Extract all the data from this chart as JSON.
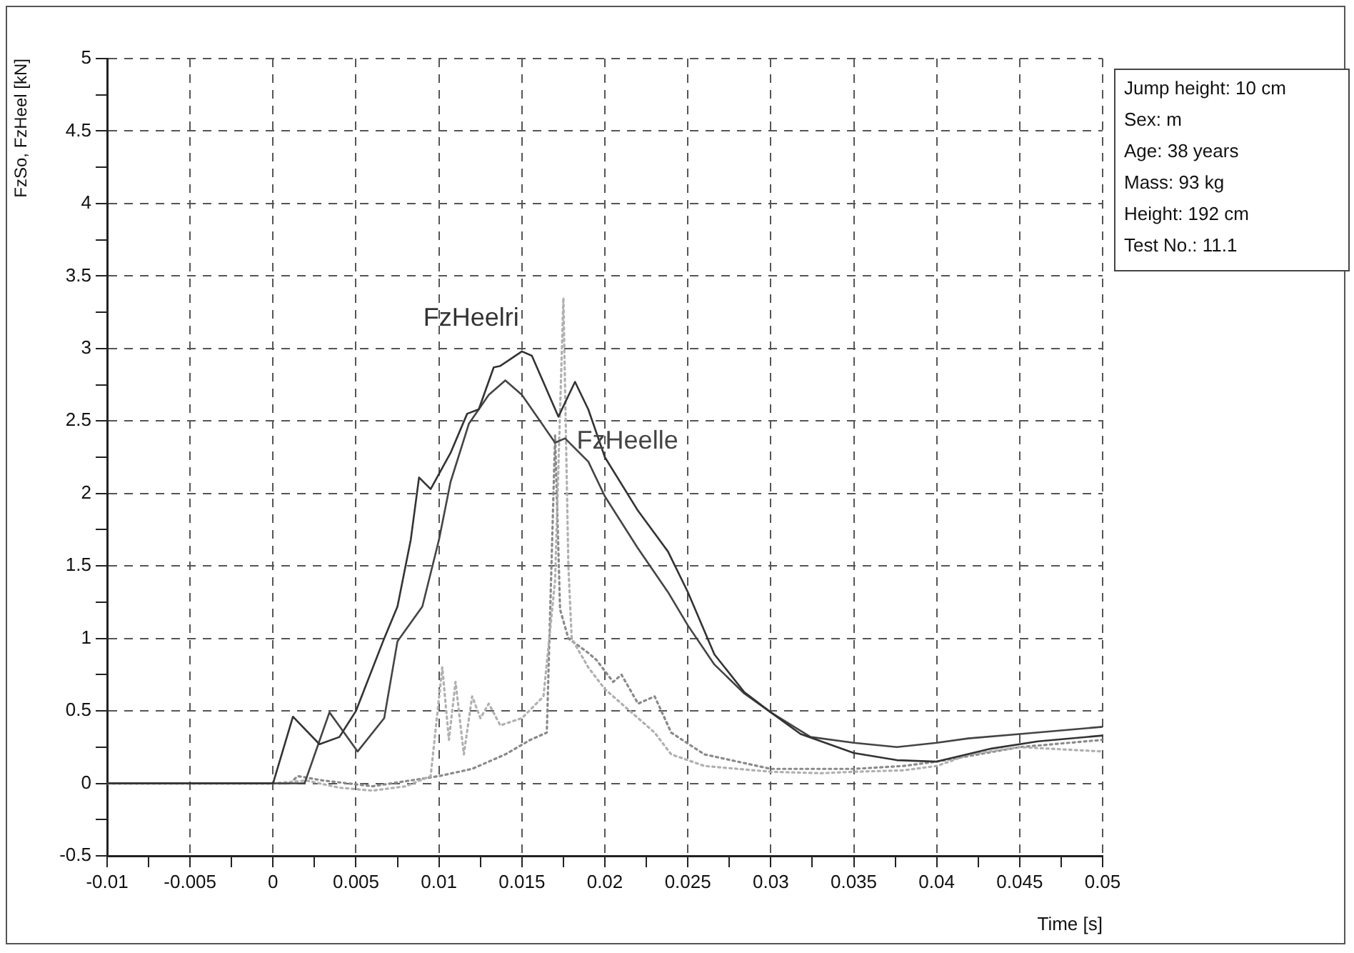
{
  "chart_data": {
    "type": "line",
    "xlabel": "Time [s]",
    "ylabel": "FzSo, FzHeel [kN]",
    "annotations": [
      "Jump height: 10 cm",
      "Sex: m",
      "Age: 38 years",
      "Mass: 93 kg",
      "Height: 192 cm",
      "Test No.: 11.1"
    ],
    "xlim": [
      -0.01,
      0.05
    ],
    "xticks": [
      -0.01,
      {
        "value": -0.0075,
        "label": null
      },
      -0.005,
      {
        "value": -0.0025,
        "label": null
      },
      0,
      {
        "value": 0.0025,
        "label": null
      },
      0.005,
      {
        "value": 0.0075,
        "label": null
      },
      0.01,
      {
        "value": 0.0125,
        "label": null
      },
      0.015,
      {
        "value": 0.0175,
        "label": null
      },
      0.02,
      {
        "value": 0.0225,
        "label": null
      },
      0.025,
      {
        "value": 0.0275,
        "label": null
      },
      0.03,
      {
        "value": 0.0325,
        "label": null
      },
      0.035,
      {
        "value": 0.0375,
        "label": null
      },
      0.04,
      {
        "value": 0.0425,
        "label": null
      },
      0.045,
      {
        "value": 0.0475,
        "label": null
      },
      0.05
    ],
    "ylim": [
      -0.5,
      5
    ],
    "yticks": [
      -0.5,
      {
        "value": -0.25,
        "label": null
      },
      0,
      {
        "value": 0.25,
        "label": null
      },
      0.5,
      {
        "value": 0.75,
        "label": null
      },
      1,
      {
        "value": 1.25,
        "label": null
      },
      1.5,
      {
        "value": 1.75,
        "label": null
      },
      2,
      {
        "value": 2.25,
        "label": null
      },
      2.5,
      {
        "value": 2.75,
        "label": null
      },
      3,
      {
        "value": 3.25,
        "label": null
      },
      3.5,
      {
        "value": 3.75,
        "label": null
      },
      4,
      {
        "value": 4.25,
        "label": null
      },
      4.5,
      {
        "value": 4.75,
        "label": null
      },
      5
    ],
    "grid": true,
    "legend": false,
    "marker": "none",
    "line_style": "solid",
    "series": [
      {
        "name": "FzHeelri",
        "color": "#333333",
        "x": [
          -0.01,
          0,
          0.0012,
          0.0028,
          0.004,
          0.005,
          0.0067,
          0.0075,
          0.0083,
          0.0088,
          0.0095,
          0.0107,
          0.0117,
          0.0124,
          0.0133,
          0.0137,
          0.015,
          0.0156,
          0.0172,
          0.0182,
          0.019,
          0.02,
          0.022,
          0.0238,
          0.025,
          0.0266,
          0.0284,
          0.03,
          0.0318,
          0.035,
          0.0376,
          0.04,
          0.0433,
          0.0461,
          0.05
        ],
        "values": [
          0,
          0,
          0.46,
          0.27,
          0.32,
          0.5,
          1.0,
          1.22,
          1.68,
          2.11,
          2.03,
          2.28,
          2.55,
          2.58,
          2.87,
          2.88,
          2.98,
          2.95,
          2.53,
          2.77,
          2.58,
          2.25,
          1.88,
          1.6,
          1.32,
          0.89,
          0.63,
          0.49,
          0.34,
          0.21,
          0.16,
          0.15,
          0.24,
          0.29,
          0.33
        ]
      },
      {
        "name": "FzHeelle",
        "color": "#444444",
        "x": [
          -0.01,
          0.0019,
          0.0034,
          0.0051,
          0.0067,
          0.0075,
          0.009,
          0.01,
          0.0107,
          0.0118,
          0.013,
          0.014,
          0.015,
          0.017,
          0.0176,
          0.019,
          0.02,
          0.022,
          0.0238,
          0.025,
          0.0266,
          0.0284,
          0.03,
          0.0324,
          0.035,
          0.0376,
          0.04,
          0.0419,
          0.045,
          0.05
        ],
        "values": [
          0,
          0,
          0.49,
          0.22,
          0.45,
          0.98,
          1.22,
          1.68,
          2.08,
          2.48,
          2.68,
          2.78,
          2.68,
          2.35,
          2.38,
          2.22,
          1.98,
          1.62,
          1.32,
          1.09,
          0.82,
          0.62,
          0.49,
          0.32,
          0.28,
          0.25,
          0.28,
          0.31,
          0.34,
          0.39
        ]
      },
      {
        "color": "#b0b0b0",
        "line_style": "dotted",
        "x": [
          -0.01,
          0,
          0.002,
          0.004,
          0.006,
          0.008,
          0.0095,
          0.0102,
          0.0106,
          0.011,
          0.0115,
          0.012,
          0.0125,
          0.013,
          0.0137,
          0.015,
          0.0163,
          0.017,
          0.0175,
          0.0178,
          0.018,
          0.019,
          0.02,
          0.021,
          0.022,
          0.023,
          0.024,
          0.026,
          0.028,
          0.03,
          0.033,
          0.035,
          0.038,
          0.04,
          0.042,
          0.045,
          0.05
        ],
        "values": [
          0,
          0,
          0.02,
          -0.03,
          -0.05,
          -0.02,
          0.05,
          0.8,
          0.3,
          0.7,
          0.2,
          0.6,
          0.45,
          0.55,
          0.4,
          0.45,
          0.6,
          1.4,
          3.35,
          1.5,
          1.0,
          0.8,
          0.65,
          0.55,
          0.45,
          0.35,
          0.2,
          0.12,
          0.1,
          0.08,
          0.07,
          0.08,
          0.09,
          0.12,
          0.2,
          0.25,
          0.22
        ]
      },
      {
        "color": "#8a8a8a",
        "line_style": "dotted",
        "x": [
          -0.01,
          0.001,
          0.0015,
          0.003,
          0.006,
          0.01,
          0.012,
          0.014,
          0.0155,
          0.0165,
          0.017,
          0.0173,
          0.0178,
          0.019,
          0.0195,
          0.0205,
          0.021,
          0.022,
          0.023,
          0.024,
          0.026,
          0.028,
          0.03,
          0.035,
          0.038,
          0.04,
          0.045,
          0.05
        ],
        "values": [
          0,
          0,
          0.05,
          0.02,
          -0.02,
          0.05,
          0.1,
          0.2,
          0.3,
          0.35,
          2.4,
          1.2,
          1.0,
          0.9,
          0.85,
          0.7,
          0.75,
          0.55,
          0.6,
          0.35,
          0.2,
          0.15,
          0.1,
          0.1,
          0.12,
          0.15,
          0.25,
          0.3
        ]
      }
    ]
  }
}
